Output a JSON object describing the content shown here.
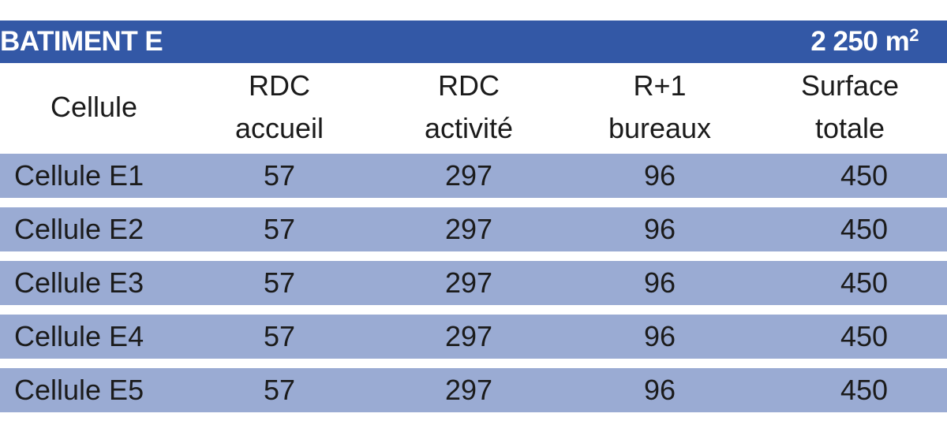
{
  "building": {
    "title": "BATIMENT E",
    "area_value": "2 250 m",
    "area_exponent": "2"
  },
  "colors": {
    "title_bar": "#3358a6",
    "row_band": "#9aabd3",
    "title_text": "#ffffff"
  },
  "headers": [
    {
      "lines": [
        "Cellule"
      ]
    },
    {
      "lines": [
        "RDC",
        "accueil"
      ]
    },
    {
      "lines": [
        "RDC",
        "activité"
      ]
    },
    {
      "lines": [
        "R+1",
        "bureaux"
      ]
    },
    {
      "lines": [
        "Surface",
        "totale"
      ]
    }
  ],
  "rows": [
    [
      "Cellule E1",
      "57",
      "297",
      "96",
      "450"
    ],
    [
      "Cellule E2",
      "57",
      "297",
      "96",
      "450"
    ],
    [
      "Cellule E3",
      "57",
      "297",
      "96",
      "450"
    ],
    [
      "Cellule E4",
      "57",
      "297",
      "96",
      "450"
    ],
    [
      "Cellule E5",
      "57",
      "297",
      "96",
      "450"
    ]
  ]
}
